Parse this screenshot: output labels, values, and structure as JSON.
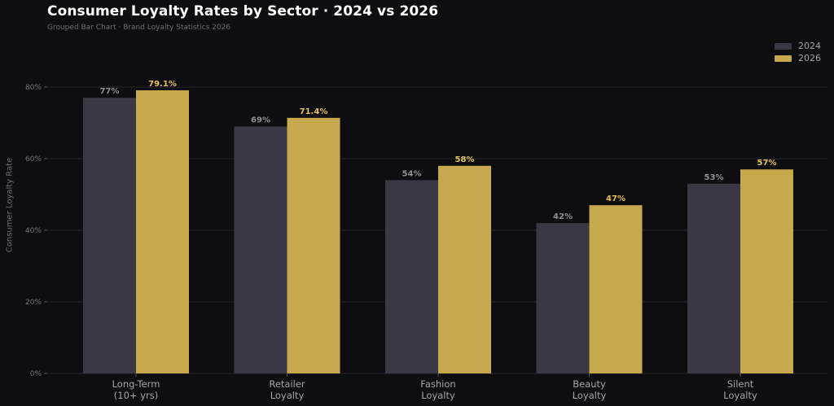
{
  "header": {
    "title": "Consumer Loyalty Rates by Sector  ·  2024 vs 2026",
    "subtitle": "Grouped Bar Chart  ·  Brand Loyalty Statistics 2026"
  },
  "colors": {
    "background": "#0e0e10",
    "series_2024": "#3a3844",
    "series_2026": "#c8a84c",
    "grid": "#27272b",
    "label_2026": "#e6c25e"
  },
  "chart_data": {
    "type": "bar",
    "title": "Consumer Loyalty Rates by Sector  ·  2024 vs 2026",
    "subtitle": "Grouped Bar Chart  ·  Brand Loyalty Statistics 2026",
    "xlabel": "",
    "ylabel": "Consumer Loyalty Rate",
    "ylim": [
      0,
      80
    ],
    "yticks": [
      "0%",
      "20%",
      "40%",
      "60%",
      "80%"
    ],
    "grid": true,
    "legend_position": "top-right",
    "categories": [
      [
        "Long-Term",
        "(10+ yrs)"
      ],
      [
        "Retailer",
        "Loyalty"
      ],
      [
        "Fashion",
        "Loyalty"
      ],
      [
        "Beauty",
        "Loyalty"
      ],
      [
        "Silent",
        "Loyalty"
      ]
    ],
    "series": [
      {
        "name": "2024",
        "values": [
          77,
          69,
          54,
          42,
          53
        ],
        "labels": [
          "77%",
          "69%",
          "54%",
          "42%",
          "53%"
        ]
      },
      {
        "name": "2026",
        "values": [
          79.1,
          71.4,
          58,
          47,
          57
        ],
        "labels": [
          "79.1%",
          "71.4%",
          "58%",
          "47%",
          "57%"
        ]
      }
    ]
  }
}
